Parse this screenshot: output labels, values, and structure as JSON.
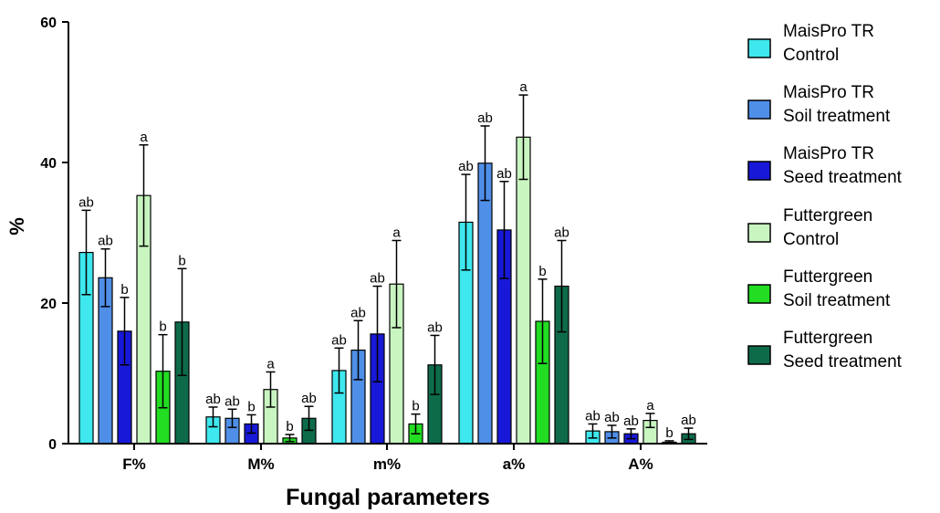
{
  "chart_data": {
    "type": "bar",
    "xlabel": "Fungal parameters",
    "ylabel": "%",
    "ylim": [
      0,
      60
    ],
    "yticks": [
      "0",
      "20",
      "40",
      "60"
    ],
    "categories": [
      "F%",
      "M%",
      "m%",
      "a%",
      "A%"
    ],
    "legend_position": "right",
    "series": [
      {
        "name_lines": [
          "MaisPro TR",
          "Control"
        ],
        "color": "#3ee8ee",
        "values": [
          27.2,
          3.8,
          10.4,
          31.5,
          1.8
        ],
        "errors": [
          6.0,
          1.4,
          3.2,
          6.8,
          1.0
        ],
        "labels": [
          "ab",
          "ab",
          "ab",
          "ab",
          "ab"
        ]
      },
      {
        "name_lines": [
          "MaisPro TR",
          "Soil treatment"
        ],
        "color": "#4f8fe8",
        "values": [
          23.6,
          3.6,
          13.3,
          39.9,
          1.7
        ],
        "errors": [
          4.1,
          1.3,
          4.2,
          5.3,
          0.9
        ],
        "labels": [
          "ab",
          "ab",
          "ab",
          "ab",
          "ab"
        ]
      },
      {
        "name_lines": [
          "MaisPro TR",
          "Seed treatment"
        ],
        "color": "#1818d8",
        "values": [
          16.0,
          2.8,
          15.6,
          30.4,
          1.4
        ],
        "errors": [
          4.8,
          1.3,
          6.8,
          6.9,
          0.7
        ],
        "labels": [
          "b",
          "b",
          "ab",
          "ab",
          "ab"
        ]
      },
      {
        "name_lines": [
          "Futtergreen",
          "Control"
        ],
        "color": "#c8f5c0",
        "values": [
          35.3,
          7.7,
          22.7,
          43.6,
          3.3
        ],
        "errors": [
          7.2,
          2.5,
          6.2,
          6.0,
          1.0
        ],
        "labels": [
          "a",
          "a",
          "a",
          "a",
          "a"
        ]
      },
      {
        "name_lines": [
          "Futtergreen",
          "Soil treatment"
        ],
        "color": "#22dd22",
        "values": [
          10.3,
          0.8,
          2.8,
          17.4,
          0.2
        ],
        "errors": [
          5.2,
          0.5,
          1.4,
          6.0,
          0.2
        ],
        "labels": [
          "b",
          "b",
          "b",
          "b",
          "b"
        ]
      },
      {
        "name_lines": [
          "Futtergreen",
          "Seed treatment"
        ],
        "color": "#0e6b4a",
        "values": [
          17.3,
          3.6,
          11.2,
          22.4,
          1.4
        ],
        "errors": [
          7.6,
          1.7,
          4.2,
          6.5,
          0.8
        ],
        "labels": [
          "b",
          "ab",
          "ab",
          "ab",
          "ab"
        ]
      }
    ]
  }
}
